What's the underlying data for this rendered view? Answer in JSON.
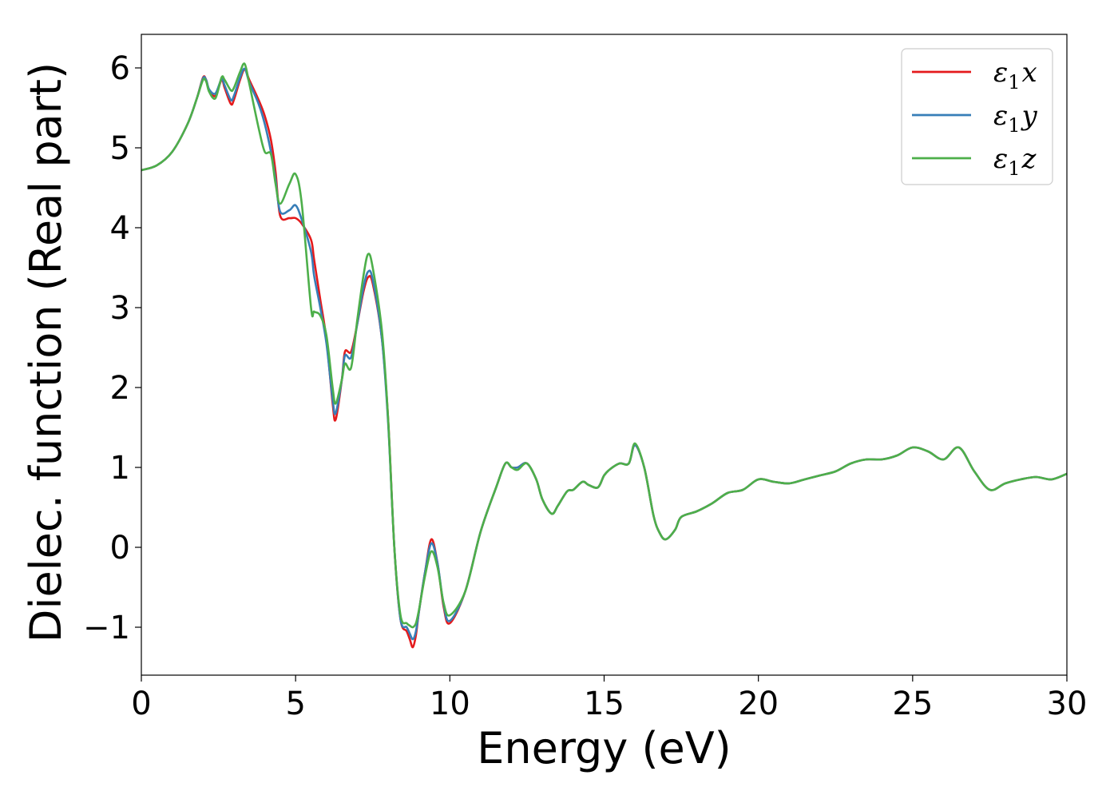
{
  "chart_data": {
    "type": "line",
    "title": "",
    "xlabel": "Energy (eV)",
    "ylabel": "Dielec. function (Real part)",
    "xlim": [
      0,
      30
    ],
    "ylim": [
      -1.6,
      6.42
    ],
    "xticks": [
      0,
      5,
      10,
      15,
      20,
      25,
      30
    ],
    "xtick_labels": [
      "0",
      "5",
      "10",
      "15",
      "20",
      "25",
      "30"
    ],
    "yticks": [
      -1,
      0,
      1,
      2,
      3,
      4,
      5,
      6
    ],
    "ytick_labels": [
      "−1",
      "0",
      "1",
      "2",
      "3",
      "4",
      "5",
      "6"
    ],
    "grid": false,
    "legend_position": "top-right",
    "series": [
      {
        "name": "ε₁x",
        "legend_main": "ε",
        "legend_sub": "1",
        "legend_var": "x",
        "color": "#e41a1c",
        "x": [
          0,
          0.5,
          1.0,
          1.5,
          1.8,
          2.0,
          2.1,
          2.2,
          2.4,
          2.6,
          2.7,
          2.9,
          3.0,
          3.2,
          3.35,
          3.5,
          3.8,
          4.0,
          4.2,
          4.35,
          4.5,
          4.8,
          5.0,
          5.2,
          5.5,
          5.6,
          5.8,
          6.0,
          6.2,
          6.3,
          6.5,
          6.6,
          6.8,
          7.0,
          7.2,
          7.35,
          7.5,
          7.8,
          8.0,
          8.2,
          8.4,
          8.6,
          8.7,
          8.8,
          8.9,
          9.0,
          9.2,
          9.4,
          9.6,
          9.8,
          10.0,
          10.5,
          11.0,
          11.5,
          11.8,
          12.0,
          12.2,
          12.5,
          12.8,
          13.0,
          13.3,
          13.5,
          13.8,
          14.0,
          14.3,
          14.5,
          14.8,
          15.0,
          15.2,
          15.5,
          15.8,
          16.0,
          16.3,
          16.6,
          16.8,
          17.0,
          17.3,
          17.5,
          18.0,
          18.5,
          19.0,
          19.5,
          20.0,
          20.5,
          21.0,
          21.5,
          22.0,
          22.5,
          23.0,
          23.5,
          24.0,
          24.5,
          25.0,
          25.5,
          26.0,
          26.5,
          27.0,
          27.5,
          28.0,
          28.5,
          29.0,
          29.5,
          30.0
        ],
        "y": [
          4.72,
          4.78,
          4.95,
          5.3,
          5.62,
          5.88,
          5.85,
          5.72,
          5.65,
          5.85,
          5.75,
          5.55,
          5.6,
          5.85,
          5.98,
          5.85,
          5.6,
          5.4,
          5.1,
          4.7,
          4.15,
          4.12,
          4.12,
          4.05,
          3.85,
          3.6,
          3.1,
          2.6,
          1.8,
          1.6,
          2.1,
          2.45,
          2.45,
          2.8,
          3.2,
          3.38,
          3.3,
          2.6,
          1.6,
          0.0,
          -0.9,
          -1.05,
          -1.15,
          -1.25,
          -1.1,
          -0.8,
          -0.3,
          0.1,
          -0.2,
          -0.75,
          -0.95,
          -0.55,
          0.2,
          0.75,
          1.05,
          1.0,
          1.0,
          1.05,
          0.85,
          0.6,
          0.42,
          0.52,
          0.7,
          0.72,
          0.82,
          0.78,
          0.75,
          0.9,
          0.98,
          1.05,
          1.05,
          1.28,
          1.0,
          0.4,
          0.18,
          0.1,
          0.22,
          0.38,
          0.45,
          0.55,
          0.68,
          0.72,
          0.85,
          0.82,
          0.8,
          0.85,
          0.9,
          0.95,
          1.05,
          1.1,
          1.1,
          1.15,
          1.25,
          1.2,
          1.1,
          1.25,
          0.95,
          0.72,
          0.8,
          0.85,
          0.88,
          0.85,
          0.92
        ]
      },
      {
        "name": "ε₁y",
        "legend_main": "ε",
        "legend_sub": "1",
        "legend_var": "y",
        "color": "#377eb8",
        "x": [
          0,
          0.5,
          1.0,
          1.5,
          1.8,
          2.0,
          2.1,
          2.2,
          2.4,
          2.6,
          2.7,
          2.9,
          3.0,
          3.2,
          3.35,
          3.5,
          3.8,
          4.0,
          4.2,
          4.35,
          4.5,
          4.8,
          5.0,
          5.2,
          5.5,
          5.6,
          5.8,
          6.0,
          6.2,
          6.3,
          6.5,
          6.6,
          6.8,
          7.0,
          7.2,
          7.35,
          7.5,
          7.8,
          8.0,
          8.2,
          8.4,
          8.6,
          8.7,
          8.8,
          8.9,
          9.0,
          9.2,
          9.4,
          9.6,
          9.8,
          10.0,
          10.5,
          11.0,
          11.5,
          11.8,
          12.0,
          12.2,
          12.5,
          12.8,
          13.0,
          13.3,
          13.5,
          13.8,
          14.0,
          14.3,
          14.5,
          14.8,
          15.0,
          15.2,
          15.5,
          15.8,
          16.0,
          16.3,
          16.6,
          16.8,
          17.0,
          17.3,
          17.5,
          18.0,
          18.5,
          19.0,
          19.5,
          20.0,
          20.5,
          21.0,
          21.5,
          22.0,
          22.5,
          23.0,
          23.5,
          24.0,
          24.5,
          25.0,
          25.5,
          26.0,
          26.5,
          27.0,
          27.5,
          28.0,
          28.5,
          29.0,
          29.5,
          30.0
        ],
        "y": [
          4.72,
          4.78,
          4.95,
          5.3,
          5.62,
          5.87,
          5.85,
          5.73,
          5.68,
          5.86,
          5.78,
          5.6,
          5.65,
          5.88,
          5.99,
          5.82,
          5.55,
          5.3,
          4.95,
          4.6,
          4.2,
          4.22,
          4.28,
          4.1,
          3.7,
          3.4,
          3.0,
          2.55,
          1.85,
          1.68,
          2.1,
          2.4,
          2.38,
          2.8,
          3.25,
          3.45,
          3.35,
          2.6,
          1.55,
          0.0,
          -0.9,
          -1.0,
          -1.08,
          -1.15,
          -1.05,
          -0.8,
          -0.3,
          0.05,
          -0.2,
          -0.72,
          -0.92,
          -0.55,
          0.2,
          0.75,
          1.05,
          1.0,
          1.0,
          1.05,
          0.85,
          0.6,
          0.42,
          0.52,
          0.7,
          0.72,
          0.82,
          0.78,
          0.75,
          0.9,
          0.98,
          1.05,
          1.05,
          1.28,
          1.0,
          0.4,
          0.18,
          0.1,
          0.22,
          0.38,
          0.45,
          0.55,
          0.68,
          0.72,
          0.85,
          0.82,
          0.8,
          0.85,
          0.9,
          0.95,
          1.05,
          1.1,
          1.1,
          1.15,
          1.25,
          1.2,
          1.1,
          1.25,
          0.95,
          0.72,
          0.8,
          0.85,
          0.88,
          0.85,
          0.92
        ]
      },
      {
        "name": "ε₁z",
        "legend_main": "ε",
        "legend_sub": "1",
        "legend_var": "z",
        "color": "#4daf4a",
        "x": [
          0,
          0.5,
          1.0,
          1.5,
          1.8,
          2.0,
          2.1,
          2.2,
          2.4,
          2.6,
          2.7,
          2.9,
          3.0,
          3.2,
          3.35,
          3.5,
          3.8,
          4.0,
          4.2,
          4.35,
          4.5,
          4.8,
          5.0,
          5.2,
          5.5,
          5.6,
          5.8,
          6.0,
          6.2,
          6.3,
          6.5,
          6.6,
          6.8,
          7.0,
          7.2,
          7.35,
          7.5,
          7.8,
          8.0,
          8.2,
          8.4,
          8.6,
          8.7,
          8.8,
          8.9,
          9.0,
          9.2,
          9.4,
          9.6,
          9.8,
          10.0,
          10.5,
          11.0,
          11.5,
          11.8,
          12.0,
          12.2,
          12.5,
          12.8,
          13.0,
          13.3,
          13.5,
          13.8,
          14.0,
          14.3,
          14.5,
          14.8,
          15.0,
          15.2,
          15.5,
          15.8,
          16.0,
          16.3,
          16.6,
          16.8,
          17.0,
          17.3,
          17.5,
          18.0,
          18.5,
          19.0,
          19.5,
          20.0,
          20.5,
          21.0,
          21.5,
          22.0,
          22.5,
          23.0,
          23.5,
          24.0,
          24.5,
          25.0,
          25.5,
          26.0,
          26.5,
          27.0,
          27.5,
          28.0,
          28.5,
          29.0,
          29.5,
          30.0
        ],
        "y": [
          4.72,
          4.78,
          4.95,
          5.3,
          5.62,
          5.85,
          5.83,
          5.7,
          5.62,
          5.88,
          5.85,
          5.72,
          5.75,
          5.95,
          6.05,
          5.8,
          5.25,
          4.95,
          4.92,
          4.55,
          4.3,
          4.55,
          4.67,
          4.3,
          3.0,
          2.95,
          2.9,
          2.65,
          2.0,
          1.8,
          2.1,
          2.3,
          2.25,
          2.85,
          3.4,
          3.67,
          3.5,
          2.7,
          1.6,
          0.0,
          -0.85,
          -0.95,
          -0.98,
          -1.0,
          -0.95,
          -0.78,
          -0.35,
          -0.05,
          -0.25,
          -0.7,
          -0.85,
          -0.55,
          0.2,
          0.75,
          1.05,
          1.0,
          0.97,
          1.05,
          0.85,
          0.6,
          0.42,
          0.52,
          0.7,
          0.72,
          0.82,
          0.78,
          0.75,
          0.9,
          0.98,
          1.05,
          1.05,
          1.3,
          1.0,
          0.4,
          0.18,
          0.1,
          0.22,
          0.38,
          0.45,
          0.55,
          0.68,
          0.72,
          0.85,
          0.82,
          0.8,
          0.85,
          0.9,
          0.95,
          1.05,
          1.1,
          1.1,
          1.15,
          1.25,
          1.2,
          1.1,
          1.25,
          0.95,
          0.72,
          0.8,
          0.85,
          0.88,
          0.85,
          0.92
        ]
      }
    ]
  }
}
